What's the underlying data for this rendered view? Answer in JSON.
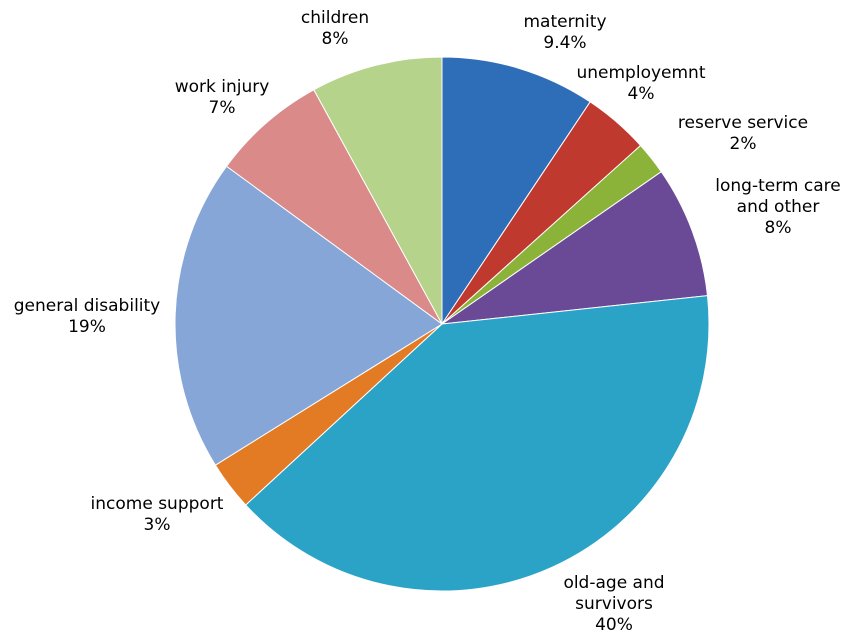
{
  "chart_data": {
    "type": "pie",
    "title": "",
    "slices": [
      {
        "name": "maternity",
        "value": 9.4,
        "value_label": "9.4%",
        "color": "#2E6DB7",
        "label_lines": [
          "maternity",
          "9.4%"
        ]
      },
      {
        "name": "unemployemnt",
        "value": 4,
        "value_label": "4%",
        "color": "#C0392F",
        "label_lines": [
          "unemployemnt",
          "4%"
        ]
      },
      {
        "name": "reserve service",
        "value": 2,
        "value_label": "2%",
        "color": "#8BB33A",
        "label_lines": [
          "reserve service",
          "2%"
        ]
      },
      {
        "name": "long-term care and other",
        "value": 8,
        "value_label": "8%",
        "color": "#6A4A96",
        "label_lines": [
          "long-term care",
          "and other",
          "8%"
        ]
      },
      {
        "name": "old-age and survivors",
        "value": 40,
        "value_label": "40%",
        "color": "#2BA3C7",
        "label_lines": [
          "old-age and",
          "survivors",
          "40%"
        ]
      },
      {
        "name": "income support",
        "value": 3,
        "value_label": "3%",
        "color": "#E37B25",
        "label_lines": [
          "income support",
          "3%"
        ]
      },
      {
        "name": "general disability",
        "value": 19,
        "value_label": "19%",
        "color": "#86A6D8",
        "label_lines": [
          "general disability",
          "19%"
        ]
      },
      {
        "name": "work injury",
        "value": 7,
        "value_label": "7%",
        "color": "#D98A89",
        "label_lines": [
          "work injury",
          "7%"
        ]
      },
      {
        "name": "children",
        "value": 8,
        "value_label": "8%",
        "color": "#B5D38A",
        "label_lines": [
          "children",
          "8%"
        ]
      }
    ]
  }
}
